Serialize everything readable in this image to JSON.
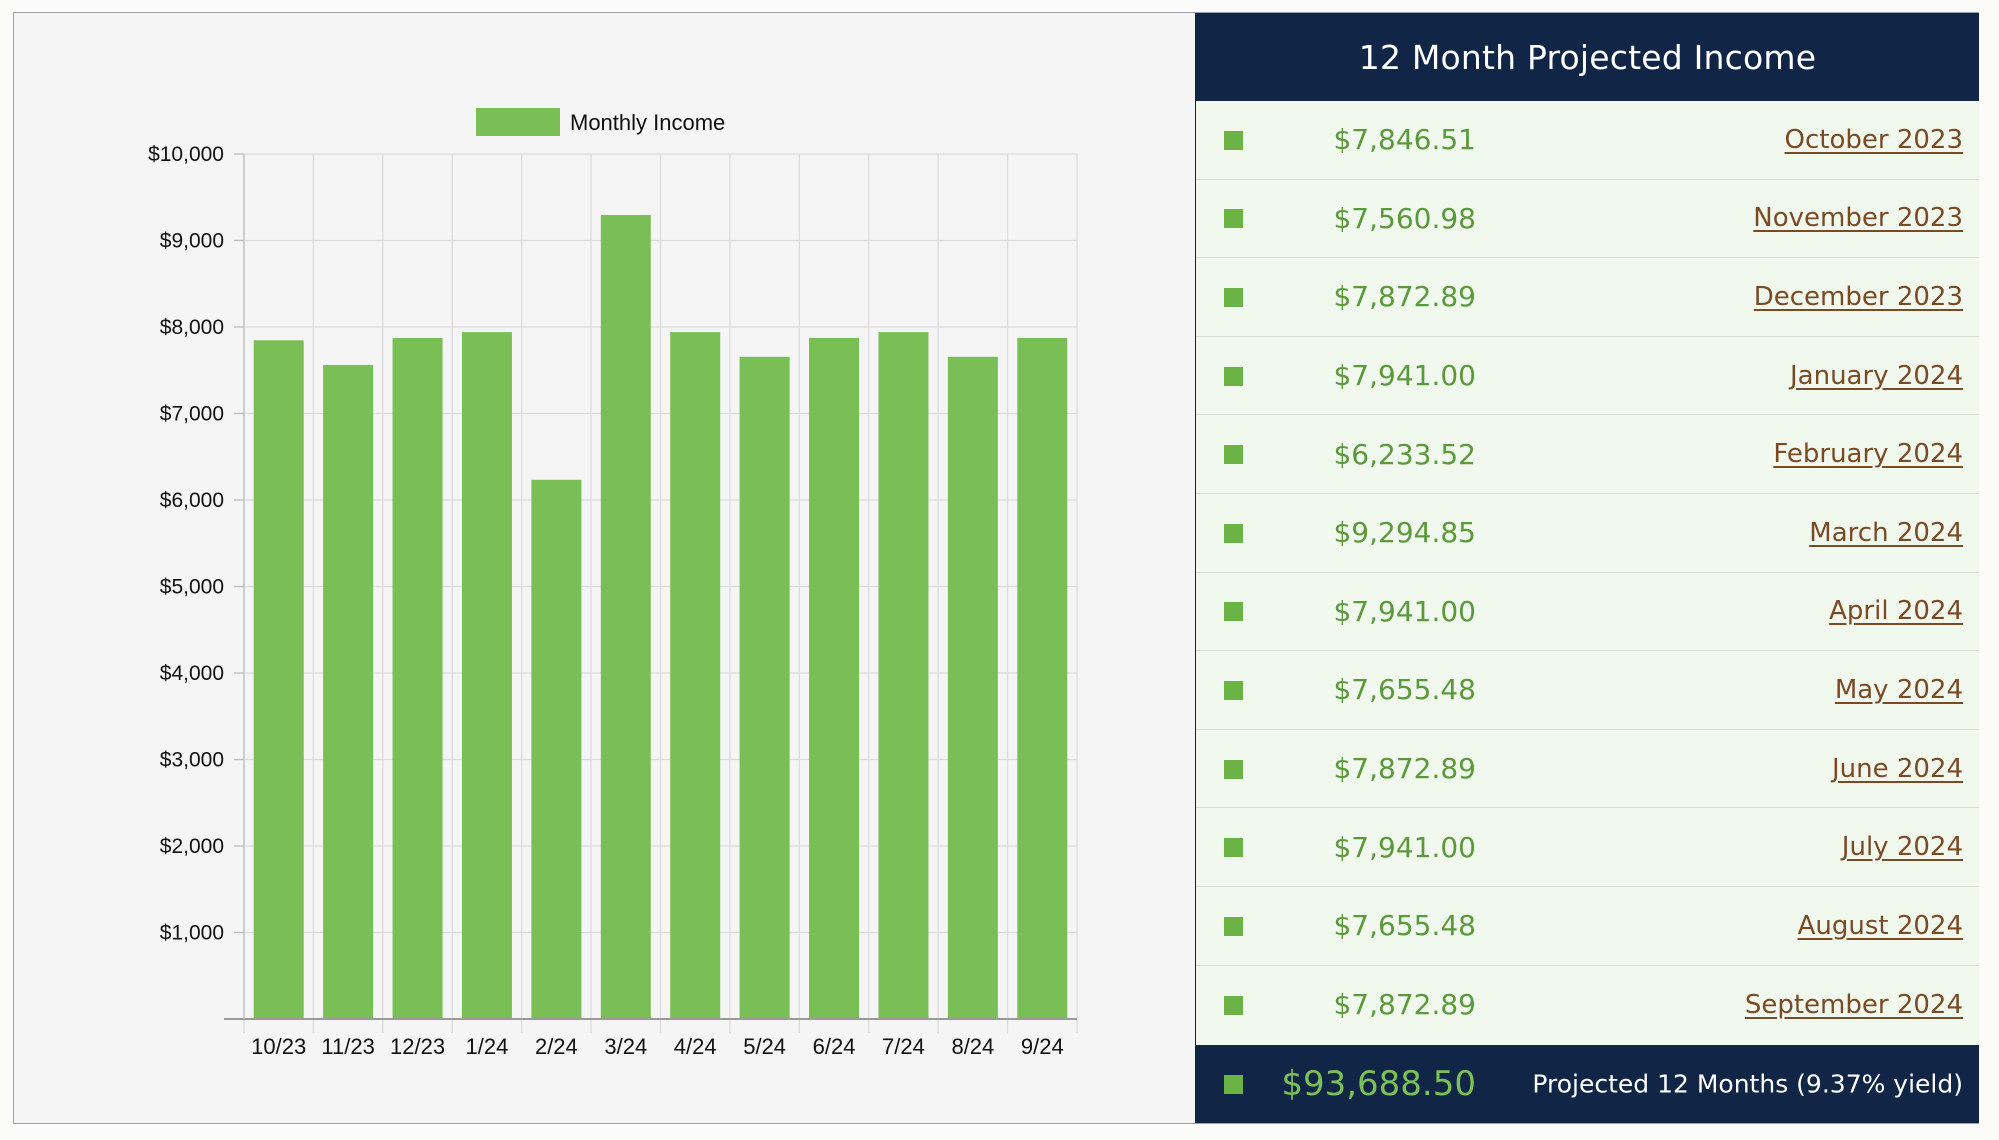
{
  "chart_data": {
    "type": "bar",
    "legend": {
      "label": "Monthly Income",
      "color": "#7abf55",
      "placement": "top"
    },
    "categories": [
      "10/23",
      "11/23",
      "12/23",
      "1/24",
      "2/24",
      "3/24",
      "4/24",
      "5/24",
      "6/24",
      "7/24",
      "8/24",
      "9/24"
    ],
    "series": [
      {
        "name": "Monthly Income",
        "values": [
          7846.51,
          7560.98,
          7872.89,
          7941.0,
          6233.52,
          9294.85,
          7941.0,
          7655.48,
          7872.89,
          7941.0,
          7655.48,
          7872.89
        ]
      }
    ],
    "ylim": [
      0,
      10000
    ],
    "yticks": [
      1000,
      2000,
      3000,
      4000,
      5000,
      6000,
      7000,
      8000,
      9000,
      10000
    ],
    "ytick_labels": [
      "$1,000",
      "$2,000",
      "$3,000",
      "$4,000",
      "$5,000",
      "$6,000",
      "$7,000",
      "$8,000",
      "$9,000",
      "$10,000"
    ],
    "grid": true,
    "bar_color": "#7abf55"
  },
  "income_table": {
    "title": "12 Month Projected Income",
    "rows": [
      {
        "amount": "$7,846.51",
        "month": "October 2023"
      },
      {
        "amount": "$7,560.98",
        "month": "November 2023"
      },
      {
        "amount": "$7,872.89",
        "month": "December 2023"
      },
      {
        "amount": "$7,941.00",
        "month": "January 2024"
      },
      {
        "amount": "$6,233.52",
        "month": "February 2024"
      },
      {
        "amount": "$9,294.85",
        "month": "March 2024"
      },
      {
        "amount": "$7,941.00",
        "month": "April 2024"
      },
      {
        "amount": "$7,655.48",
        "month": "May 2024"
      },
      {
        "amount": "$7,872.89",
        "month": "June 2024"
      },
      {
        "amount": "$7,941.00",
        "month": "July 2024"
      },
      {
        "amount": "$7,655.48",
        "month": "August 2024"
      },
      {
        "amount": "$7,872.89",
        "month": "September 2024"
      }
    ],
    "total": {
      "amount": "$93,688.50",
      "label": "Projected 12 Months (9.37% yield)"
    },
    "colors": {
      "header_bg": "#112647",
      "row_bg": "#f1f9ef",
      "amount": "#5a9a3a",
      "link": "#7a4a25",
      "marker": "#6ab344"
    }
  }
}
